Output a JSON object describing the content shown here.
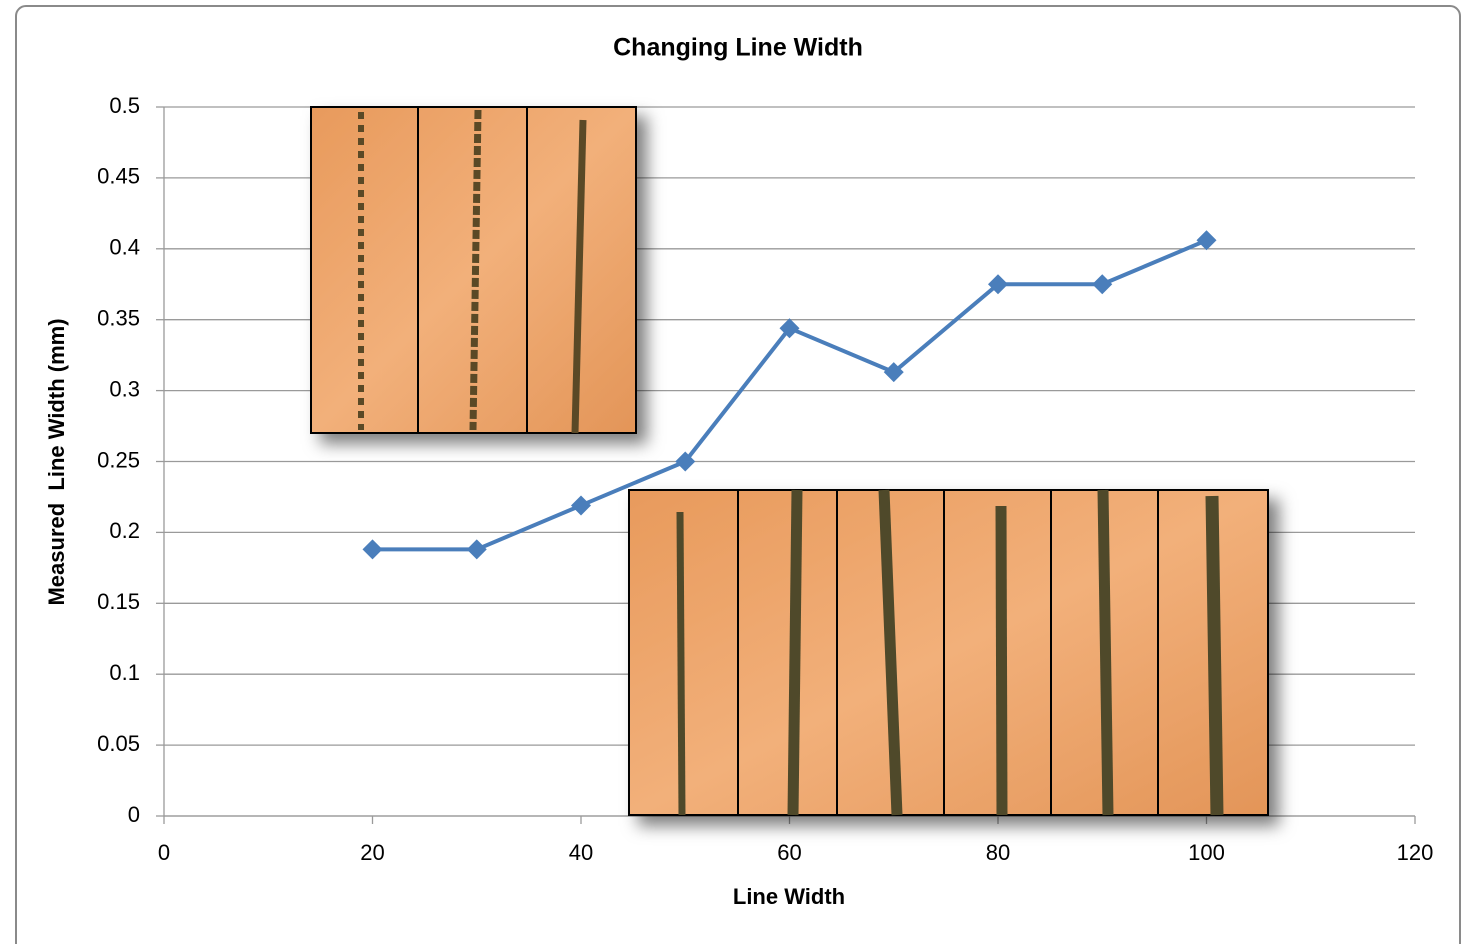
{
  "chart_data": {
    "type": "line",
    "title": "Changing Line Width",
    "x_label": "Line Width",
    "y_label": "Measured  Line Width (mm)",
    "x": [
      20,
      30,
      40,
      50,
      60,
      70,
      80,
      90,
      100
    ],
    "series": [
      {
        "name": "Measured Line Width",
        "color": "#4a7ebb",
        "values": [
          0.188,
          0.188,
          0.219,
          0.25,
          0.344,
          0.313,
          0.375,
          0.375,
          0.406
        ]
      }
    ],
    "xlim": [
      0,
      120
    ],
    "xticks": [
      0,
      20,
      40,
      60,
      80,
      100,
      120
    ],
    "ylim": [
      0,
      0.5
    ],
    "yticks": [
      0,
      0.05,
      0.1,
      0.15,
      0.2,
      0.25,
      0.3,
      0.35,
      0.4,
      0.45,
      0.5
    ],
    "grid": true
  }
}
